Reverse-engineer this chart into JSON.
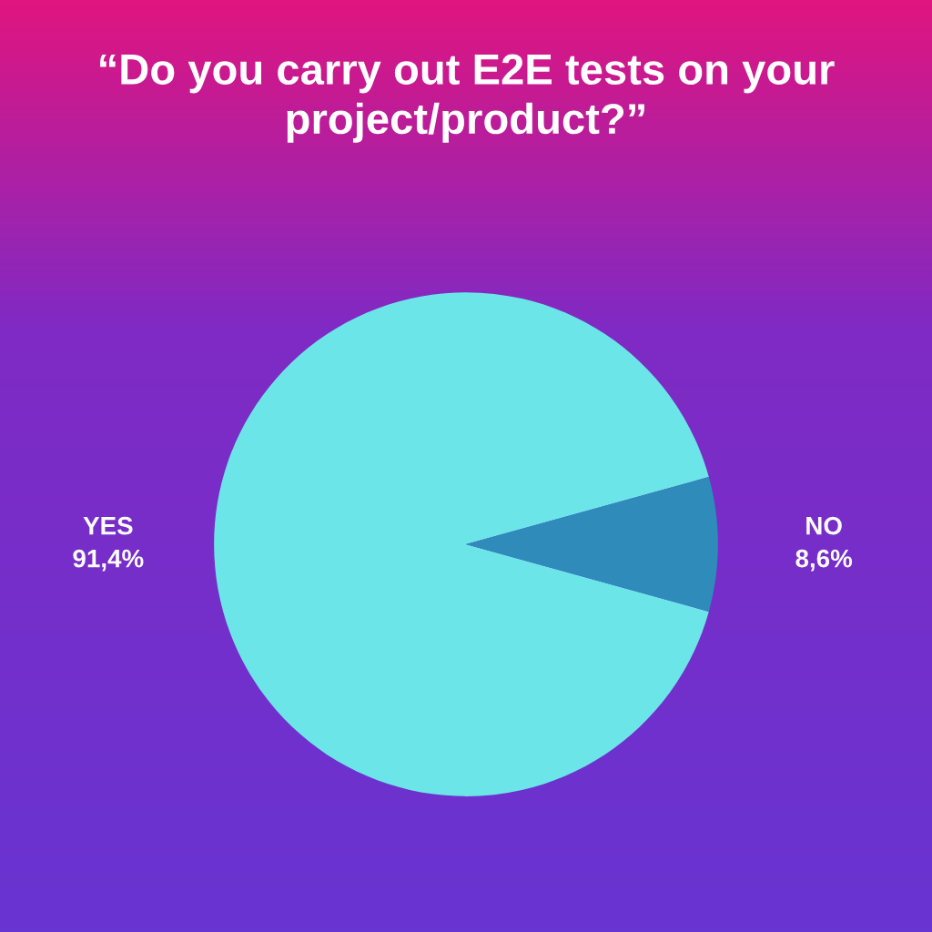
{
  "chart_data": {
    "type": "pie",
    "title": "“Do you carry out E2E tests on your project/product?”",
    "categories": [
      "YES",
      "NO"
    ],
    "values": [
      91.4,
      8.6
    ],
    "colors": [
      "#6ce5e8",
      "#2e8bba"
    ],
    "value_labels": [
      "91,4%",
      "8,6%"
    ],
    "legend": false
  }
}
